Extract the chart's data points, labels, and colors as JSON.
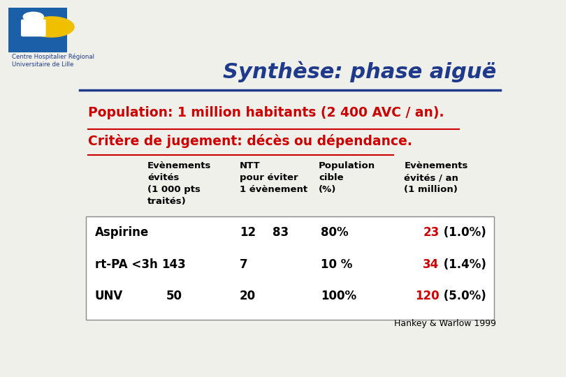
{
  "title": "Synthèse: phase aiguë",
  "title_color": "#1F3A8A",
  "background_color": "#F0F0EB",
  "header_line_color": "#1F3A8A",
  "population_text_line1": "Population: 1 million habitants (2 400 AVC / an).",
  "population_text_line2": "Critère de jugement: décès ou dépendance.",
  "col_headers": [
    "Evènements\névités\n(1 000 pts\ntraités)",
    "NTT\npour éviter\n1 évènement",
    "Population\ncible\n(%)",
    "Evènements\névités / an\n(1 million)"
  ],
  "rows": [
    {
      "label": "Aspirine",
      "evts": "",
      "ntt": "12",
      "ntt2": "83",
      "pop": "80%",
      "evts_an_red": "23",
      "evts_an_black": " (1.0%)"
    },
    {
      "label": "rt-PA <3h",
      "evts": "143",
      "ntt": "7",
      "ntt2": "",
      "pop": "10 %",
      "evts_an_red": "34",
      "evts_an_black": " (1.4%)"
    },
    {
      "label": "UNV",
      "evts": "50",
      "ntt": "20",
      "ntt2": "",
      "pop": "100%",
      "evts_an_red": "120",
      "evts_an_black": " (5.0%)"
    }
  ],
  "footnote": "Hankey & Warlow 1999",
  "red_color": "#CC0000",
  "black_color": "#000000",
  "dark_blue": "#1F3A8A",
  "logo_blue": "#1A5FA8",
  "logo_yellow": "#F0C000",
  "logo_text": "Centre Hospitalier Régional\nUniversitaire de Lille"
}
